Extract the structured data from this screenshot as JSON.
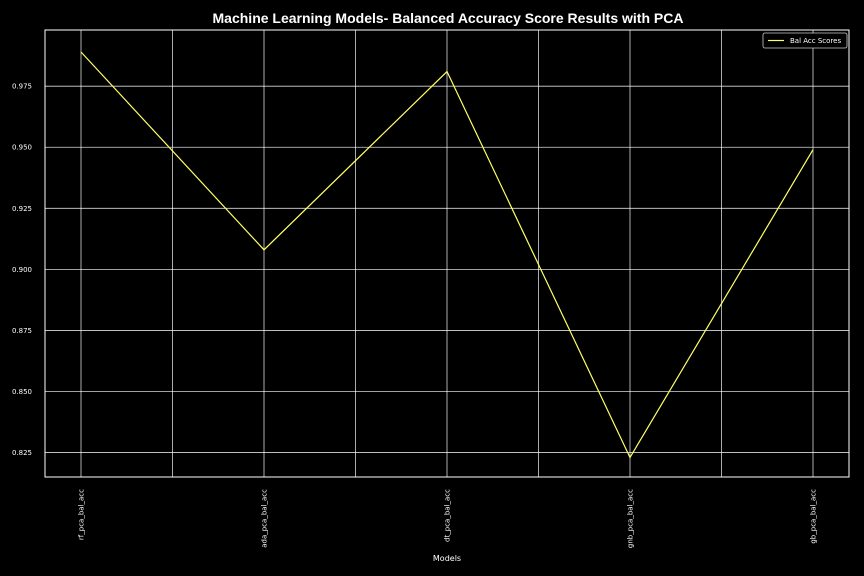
{
  "chart_data": {
    "type": "line",
    "title": "Machine Learning Models- Balanced Accuracy Score Results with PCA",
    "xlabel": "Models",
    "ylabel": "",
    "categories": [
      "rf_pca_bal_acc",
      "ada_pca_bal_acc",
      "dt_pca_bal_acc",
      "gnb_pca_bal_acc",
      "gb_pca_bal_acc"
    ],
    "x_grid_positions": [
      0,
      0.5,
      1,
      1.5,
      2,
      2.5,
      3,
      3.5,
      4
    ],
    "series": [
      {
        "name": "Bal Acc Scores",
        "color": "#ffff66",
        "values": [
          0.989,
          0.908,
          0.981,
          0.823,
          0.949
        ]
      }
    ],
    "ylim": [
      0.815,
      0.998
    ],
    "yticks": [
      0.825,
      0.85,
      0.875,
      0.9,
      0.925,
      0.95,
      0.975
    ],
    "ytick_labels": [
      "0.825",
      "0.850",
      "0.875",
      "0.900",
      "0.925",
      "0.950",
      "0.975"
    ],
    "grid": true,
    "legend_position": "top-right",
    "colors": {
      "background": "#000000",
      "grid": "#ffffff",
      "axes": "#ffffff",
      "text": "#ffffff",
      "line": "#ffff66"
    }
  }
}
